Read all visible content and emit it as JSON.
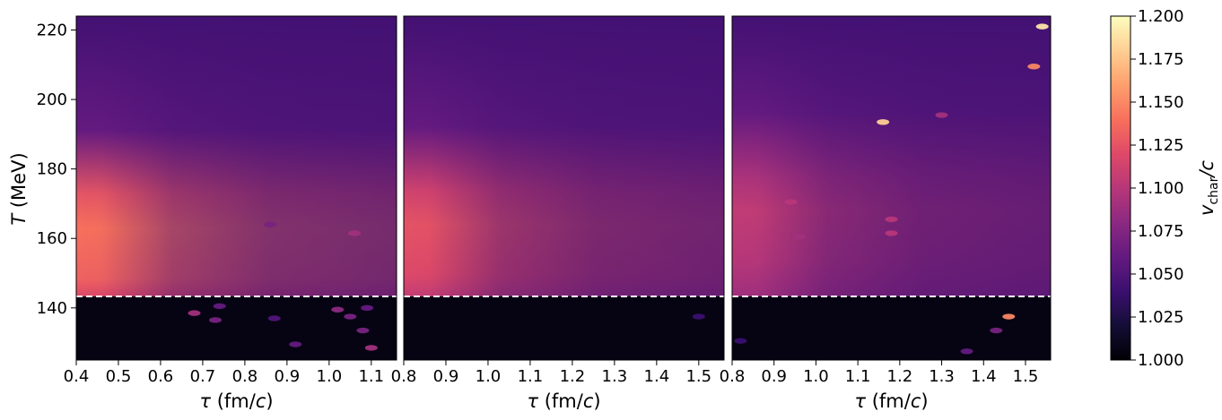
{
  "chart_data": {
    "type": "heatmap",
    "shared_y": {
      "label_symbol": "T",
      "label_unit": " (MeV)",
      "range": [
        125,
        224
      ],
      "ticks": [
        140,
        160,
        180,
        200,
        220
      ],
      "tick_labels": [
        "140",
        "160",
        "180",
        "200",
        "220"
      ]
    },
    "colorbar": {
      "colormap": "magma",
      "range": [
        1.0,
        1.2
      ],
      "ticks": [
        1.0,
        1.025,
        1.05,
        1.075,
        1.1,
        1.125,
        1.15,
        1.175,
        1.2
      ],
      "tick_labels": [
        "1.000",
        "1.025",
        "1.050",
        "1.075",
        "1.100",
        "1.125",
        "1.150",
        "1.175",
        "1.200"
      ],
      "label_main": "v",
      "label_sub": "char",
      "label_tail": "/c"
    },
    "threshold_line": {
      "T": 143.3,
      "style": "dashed",
      "color": "#ffffff"
    },
    "panels": [
      {
        "x_label_symbol": "τ",
        "x_label_unit": " (fm/",
        "x_label_c": "c",
        "x_label_close": ")",
        "xlim": [
          0.4,
          1.16
        ],
        "x_ticks": [
          0.4,
          0.5,
          0.6,
          0.7,
          0.8,
          0.9,
          1.0,
          1.1
        ],
        "x_tick_labels": [
          "0.4",
          "0.5",
          "0.6",
          "0.7",
          "0.8",
          "0.9",
          "1.0",
          "1.1"
        ],
        "peak_value": 1.14,
        "peak_T": 163,
        "hot_spots": [
          {
            "tau": 0.68,
            "T": 138.5,
            "v": 1.09
          },
          {
            "tau": 0.73,
            "T": 136.5,
            "v": 1.07
          },
          {
            "tau": 0.74,
            "T": 140.5,
            "v": 1.06
          },
          {
            "tau": 0.86,
            "T": 164,
            "v": 1.07
          },
          {
            "tau": 0.87,
            "T": 137,
            "v": 1.05
          },
          {
            "tau": 0.92,
            "T": 129.5,
            "v": 1.06
          },
          {
            "tau": 1.02,
            "T": 139.5,
            "v": 1.08
          },
          {
            "tau": 1.05,
            "T": 137.5,
            "v": 1.07
          },
          {
            "tau": 1.06,
            "T": 161.5,
            "v": 1.09
          },
          {
            "tau": 1.08,
            "T": 133.5,
            "v": 1.07
          },
          {
            "tau": 1.1,
            "T": 128.5,
            "v": 1.09
          },
          {
            "tau": 1.09,
            "T": 140,
            "v": 1.06
          }
        ]
      },
      {
        "x_label_symbol": "τ",
        "x_label_unit": " (fm/",
        "x_label_c": "c",
        "x_label_close": ")",
        "xlim": [
          0.8,
          1.56
        ],
        "x_ticks": [
          0.8,
          0.9,
          1.0,
          1.1,
          1.2,
          1.3,
          1.4,
          1.5
        ],
        "x_tick_labels": [
          "0.8",
          "0.9",
          "1.0",
          "1.1",
          "1.2",
          "1.3",
          "1.4",
          "1.5"
        ],
        "peak_value": 1.125,
        "peak_T": 164,
        "hot_spots": [
          {
            "tau": 1.5,
            "T": 137.5,
            "v": 1.04
          }
        ]
      },
      {
        "x_label_symbol": "τ",
        "x_label_unit": " (fm/",
        "x_label_c": "c",
        "x_label_close": ")",
        "xlim": [
          0.8,
          1.56
        ],
        "x_ticks": [
          0.8,
          0.9,
          1.0,
          1.1,
          1.2,
          1.3,
          1.4,
          1.5
        ],
        "x_tick_labels": [
          "0.8",
          "0.9",
          "1.0",
          "1.1",
          "1.2",
          "1.3",
          "1.4",
          "1.5"
        ],
        "peak_value": 1.105,
        "peak_T": 168,
        "hot_spots": [
          {
            "tau": 1.54,
            "T": 221,
            "v": 1.19
          },
          {
            "tau": 1.52,
            "T": 209.5,
            "v": 1.15
          },
          {
            "tau": 1.16,
            "T": 193.5,
            "v": 1.18
          },
          {
            "tau": 1.3,
            "T": 195.5,
            "v": 1.09
          },
          {
            "tau": 1.18,
            "T": 165.5,
            "v": 1.1
          },
          {
            "tau": 1.18,
            "T": 161.5,
            "v": 1.1
          },
          {
            "tau": 0.94,
            "T": 170.5,
            "v": 1.1
          },
          {
            "tau": 0.96,
            "T": 160.5,
            "v": 1.09
          },
          {
            "tau": 1.46,
            "T": 137.5,
            "v": 1.15
          },
          {
            "tau": 1.43,
            "T": 133.5,
            "v": 1.07
          },
          {
            "tau": 1.36,
            "T": 127.5,
            "v": 1.06
          },
          {
            "tau": 0.82,
            "T": 130.5,
            "v": 1.04
          }
        ]
      }
    ]
  }
}
